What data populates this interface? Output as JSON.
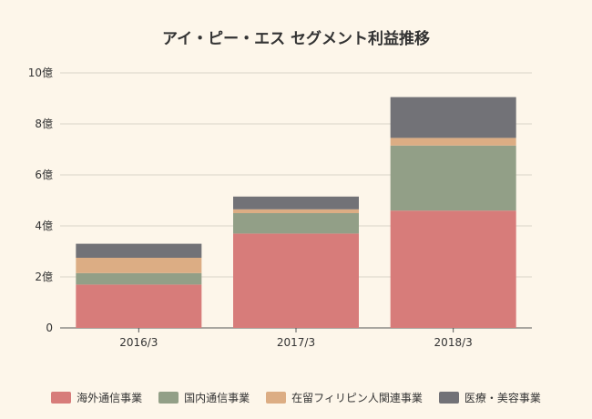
{
  "chart_data": {
    "type": "bar",
    "stacked": true,
    "title": "アイ・ピー・エス セグメント利益推移",
    "categories": [
      "2016/3",
      "2017/3",
      "2018/3"
    ],
    "y_unit_suffix": "億",
    "ylim": [
      0,
      10
    ],
    "yticks": [
      0,
      2,
      4,
      6,
      8,
      10
    ],
    "ytick_labels": [
      "0",
      "2億",
      "4億",
      "6億",
      "8億",
      "10億"
    ],
    "grid": true,
    "legend_position": "bottom",
    "series": [
      {
        "name": "海外通信事業",
        "color": "#d77c7a",
        "values": [
          1.7,
          3.7,
          4.6
        ]
      },
      {
        "name": "国内通信事業",
        "color": "#929f87",
        "values": [
          0.45,
          0.8,
          2.55
        ]
      },
      {
        "name": "在留フィリピン人関連事業",
        "color": "#dcad84",
        "values": [
          0.6,
          0.15,
          0.3
        ]
      },
      {
        "name": "医療・美容事業",
        "color": "#727277",
        "values": [
          0.55,
          0.5,
          1.6
        ]
      }
    ]
  }
}
